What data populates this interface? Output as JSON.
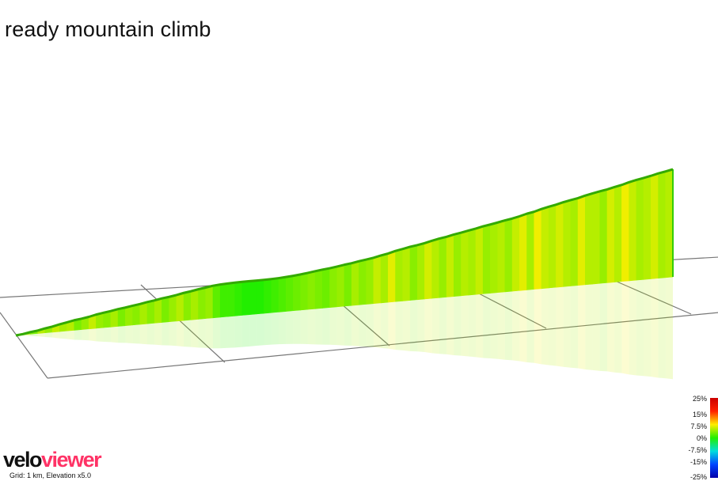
{
  "title": "ready mountain climb",
  "footer": {
    "grid_note": "Grid: 1 km, Elevation x5.0"
  },
  "brand": {
    "part1": "velo",
    "part2": "viewer"
  },
  "legend": {
    "labels": [
      "25%",
      "15%",
      "7.5%",
      "0%",
      "-7.5%",
      "-15%",
      "-25%"
    ],
    "stops": [
      {
        "value": 25,
        "color": "#cc0000"
      },
      {
        "value": 15,
        "color": "#ff2200"
      },
      {
        "value": 7.5,
        "color": "#ffee00"
      },
      {
        "value": 0,
        "color": "#22ee00"
      },
      {
        "value": -7.5,
        "color": "#00dddd"
      },
      {
        "value": -15,
        "color": "#0044ff"
      },
      {
        "value": -25,
        "color": "#0000aa"
      }
    ]
  },
  "chart_data": {
    "type": "area",
    "view": "3d-perspective",
    "grid_km": 1,
    "elevation_exaggeration": 5.0,
    "gradient_percent": [
      2.5,
      4.5,
      3,
      5,
      4,
      5.5,
      4.5,
      5,
      3,
      4,
      5.5,
      4,
      3.5,
      4.5,
      3,
      4,
      3.5,
      4.5,
      3.5,
      4.5,
      3,
      4,
      5,
      3.5,
      4.5,
      3.5,
      4,
      2,
      1,
      1,
      0.5,
      0,
      0,
      0,
      0.5,
      1,
      1.5,
      2,
      2.5,
      3,
      3.5,
      3,
      2.5,
      3.5,
      4,
      3,
      4.5,
      3.5,
      4,
      5.5,
      4.5,
      6.5,
      4.5,
      5,
      3.5,
      4.5,
      6,
      5,
      4,
      5.5,
      4,
      5,
      4.5,
      5.5,
      4,
      4.5,
      5,
      4,
      5.5,
      6.5,
      4.5,
      7,
      5.5,
      5,
      6,
      5,
      4.5,
      6.5,
      5,
      5,
      4,
      6,
      5,
      7,
      5.5,
      4.5,
      5,
      6,
      4.5,
      5
    ]
  }
}
